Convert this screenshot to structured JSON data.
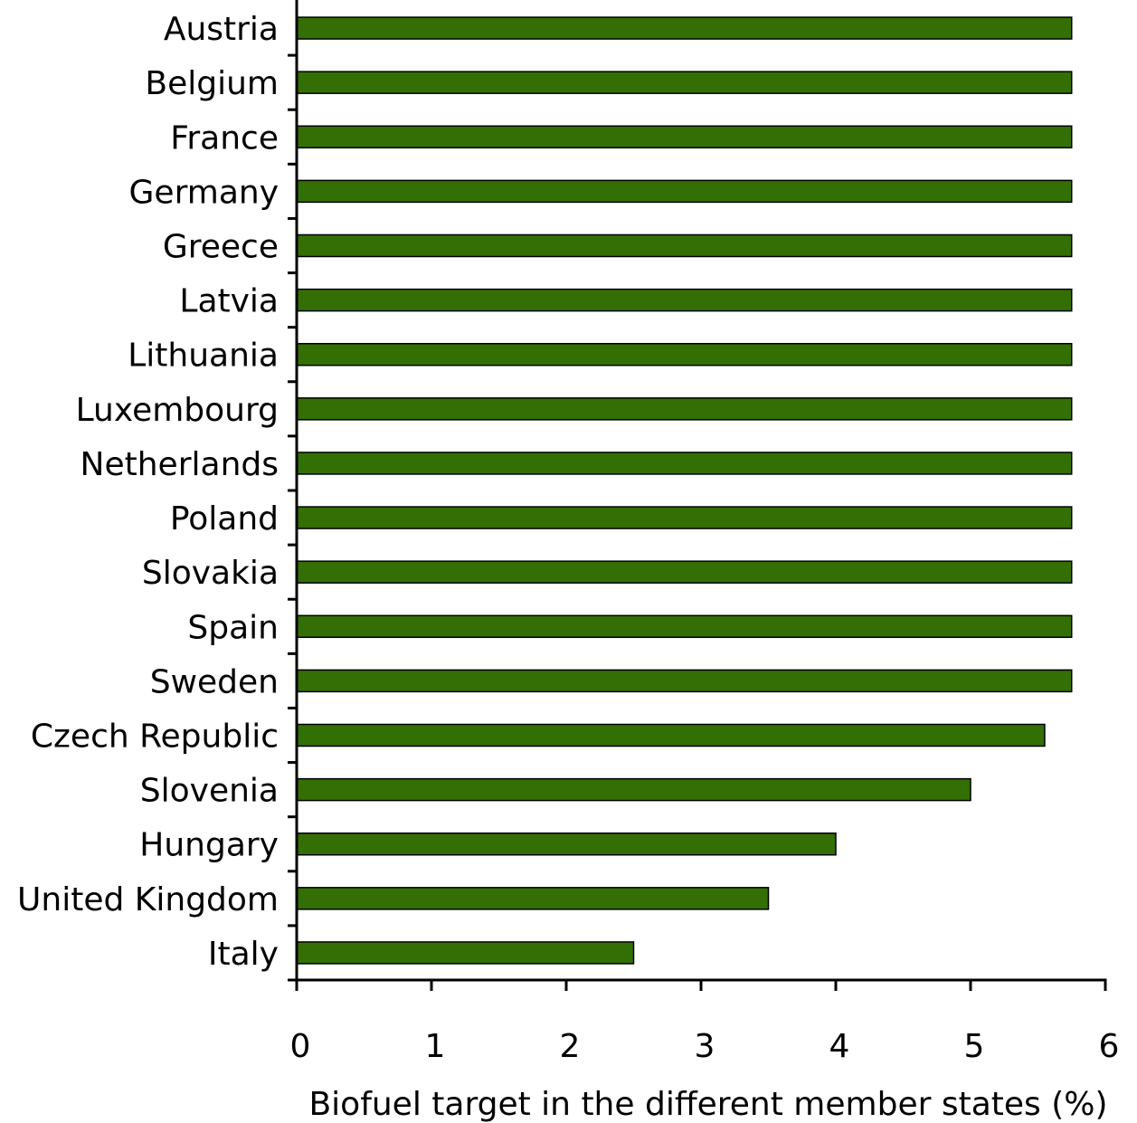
{
  "chart_data": {
    "type": "bar",
    "orientation": "horizontal",
    "categories": [
      "Austria",
      "Belgium",
      "France",
      "Germany",
      "Greece",
      "Latvia",
      "Lithuania",
      "Luxembourg",
      "Netherlands",
      "Poland",
      "Slovakia",
      "Spain",
      "Sweden",
      "Czech Republic",
      "Slovenia",
      "Hungary",
      "United Kingdom",
      "Italy"
    ],
    "values": [
      5.75,
      5.75,
      5.75,
      5.75,
      5.75,
      5.75,
      5.75,
      5.75,
      5.75,
      5.75,
      5.75,
      5.75,
      5.75,
      5.55,
      5.0,
      4.0,
      3.5,
      2.5
    ],
    "title": "",
    "xlabel": "Biofuel target in the different member states (%)",
    "ylabel": "",
    "xlim": [
      0,
      6
    ],
    "xticks": [
      "0",
      "1",
      "2",
      "3",
      "4",
      "5",
      "6"
    ],
    "grid": false,
    "legend": "none",
    "colors": {
      "bar_fill": "#336f05",
      "bar_stroke": "#000000",
      "axis": "#000000",
      "text": "#000000"
    }
  }
}
